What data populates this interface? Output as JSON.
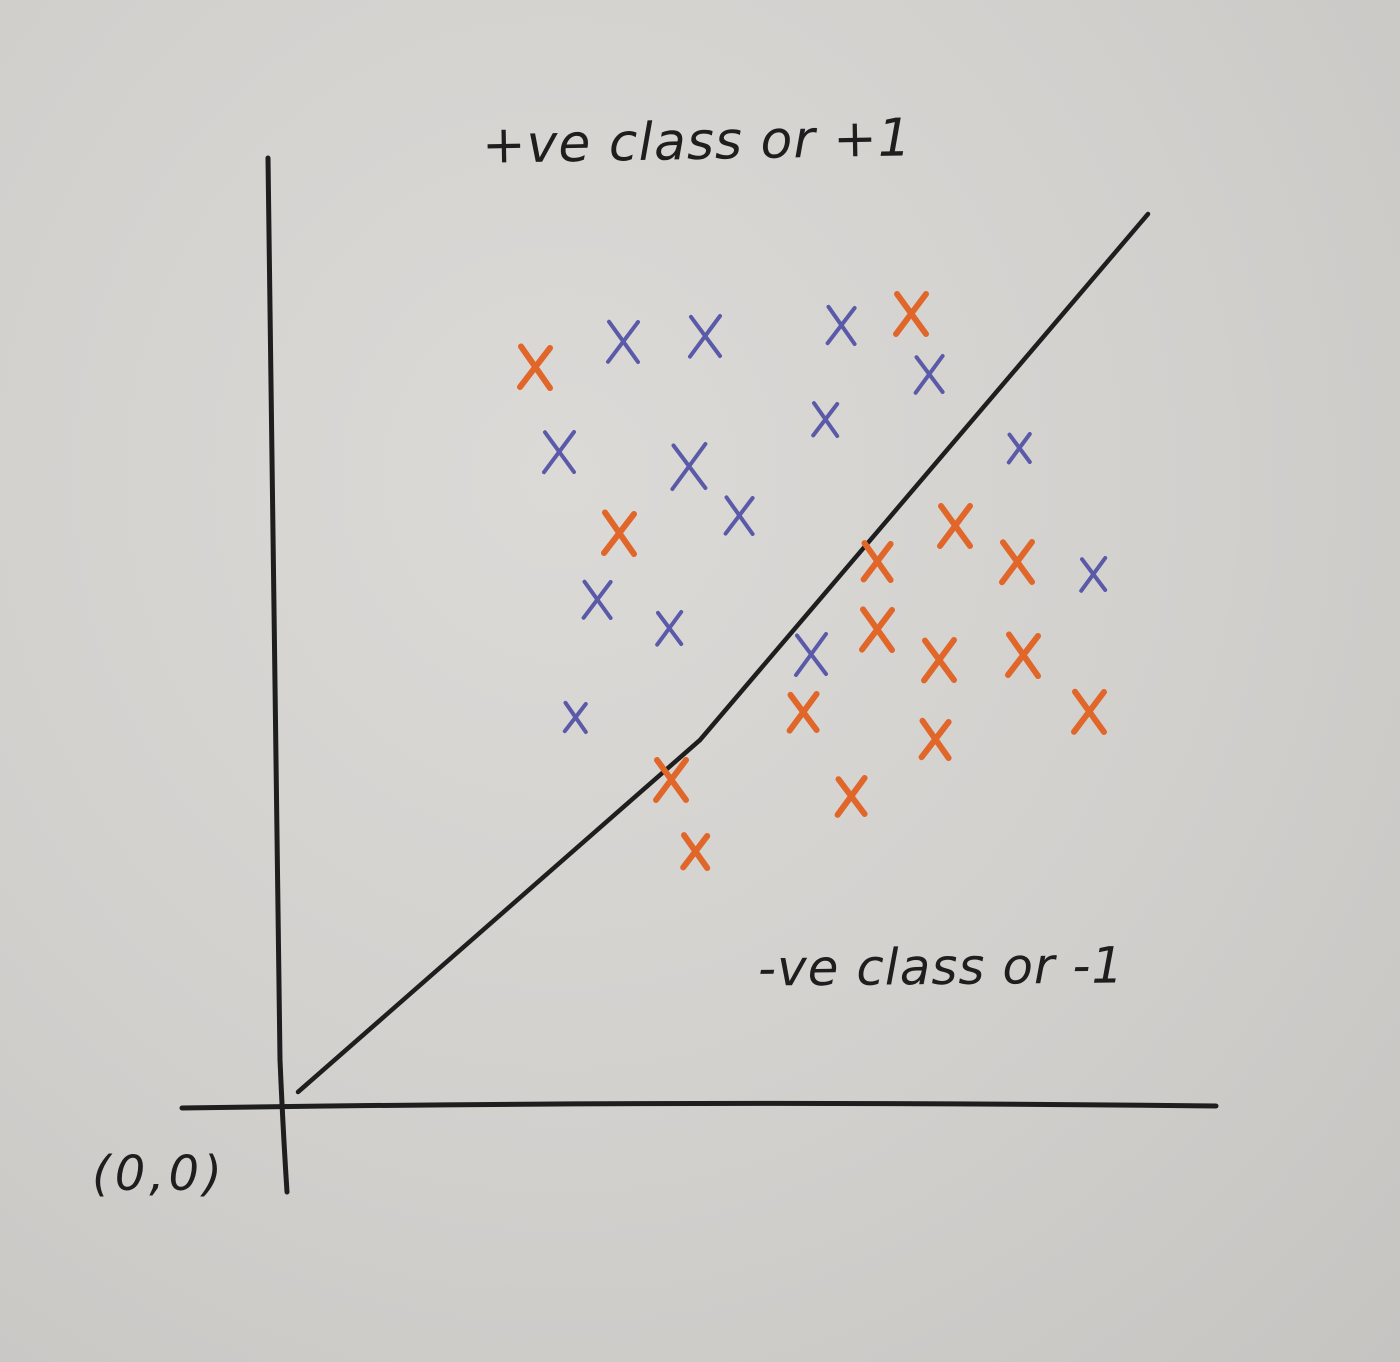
{
  "labels": {
    "positive_class": "+ve class or +1",
    "negative_class": "-ve class or -1",
    "origin": "(0,0)"
  },
  "colors": {
    "ink": "#1e1e1e",
    "class_blue": "#5a5aa8",
    "class_orange": "#e0662a",
    "paper": "#d6d4d1"
  },
  "points": [
    {
      "color": "orange"
    },
    {
      "color": "blue"
    },
    {
      "color": "blue"
    },
    {
      "color": "blue"
    },
    {
      "color": "orange"
    },
    {
      "color": "blue"
    },
    {
      "color": "blue"
    },
    {
      "color": "blue"
    },
    {
      "color": "blue"
    },
    {
      "color": "blue"
    },
    {
      "color": "blue"
    },
    {
      "color": "orange"
    },
    {
      "color": "blue"
    },
    {
      "color": "blue"
    },
    {
      "color": "blue"
    },
    {
      "color": "orange"
    },
    {
      "color": "blue"
    },
    {
      "color": "orange"
    },
    {
      "color": "orange"
    },
    {
      "color": "blue"
    },
    {
      "color": "orange"
    },
    {
      "color": "orange"
    },
    {
      "color": "orange"
    },
    {
      "color": "orange"
    },
    {
      "color": "orange"
    },
    {
      "color": "orange"
    },
    {
      "color": "orange"
    },
    {
      "color": "orange"
    },
    {
      "color": "orange"
    },
    {
      "color": "orange"
    }
  ]
}
